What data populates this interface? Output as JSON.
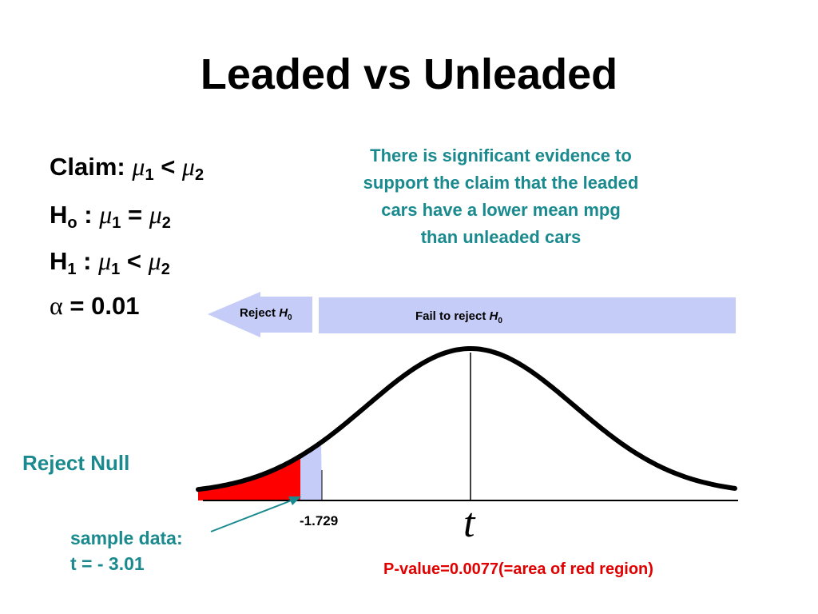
{
  "slide": {
    "title": "Leaded vs Unleaded",
    "claim": {
      "label": "Claim:",
      "lhs": "μ",
      "lhs_sub": "1",
      "op": "<",
      "rhs": "μ",
      "rhs_sub": "2"
    },
    "h0": {
      "label": "H",
      "label_sub": "o",
      "colon": ":",
      "lhs": "μ",
      "lhs_sub": "1",
      "op": "=",
      "rhs": "μ",
      "rhs_sub": "2"
    },
    "h1": {
      "label": "H",
      "label_sub": "1",
      "colon": ":",
      "lhs": "μ",
      "lhs_sub": "1",
      "op": "<",
      "rhs": "μ",
      "rhs_sub": "2"
    },
    "alpha": {
      "symbol": "α",
      "text": "= 0.01"
    },
    "conclusion": {
      "line1": "There is significant evidence to",
      "line2": "support the claim that the leaded",
      "line3": "cars have a lower mean mpg",
      "line4": "than unleaded cars"
    },
    "reject_null_label": "Reject Null",
    "sample_data": {
      "line1": "sample data:",
      "line2": "t = - 3.01"
    },
    "pvalue_text": "P-value=0.0077(=area of red region)"
  },
  "chart_data": {
    "type": "area",
    "distribution": "t",
    "x_axis_label": "t",
    "critical_value": -1.729,
    "critical_value_label": "-1.729",
    "test_statistic": -3.01,
    "p_value": 0.0077,
    "tail": "left",
    "regions": [
      {
        "name": "Reject",
        "symbol": "H",
        "symbol_sub": "0"
      },
      {
        "name": "Fail to reject",
        "symbol": "H",
        "symbol_sub": "0"
      }
    ],
    "colors": {
      "curve": "#000000",
      "pvalue_region": "#ff0000",
      "reject_region": "#c5ccf7",
      "accent": "#1a8a8f",
      "pvalue_text": "#e10000"
    }
  }
}
